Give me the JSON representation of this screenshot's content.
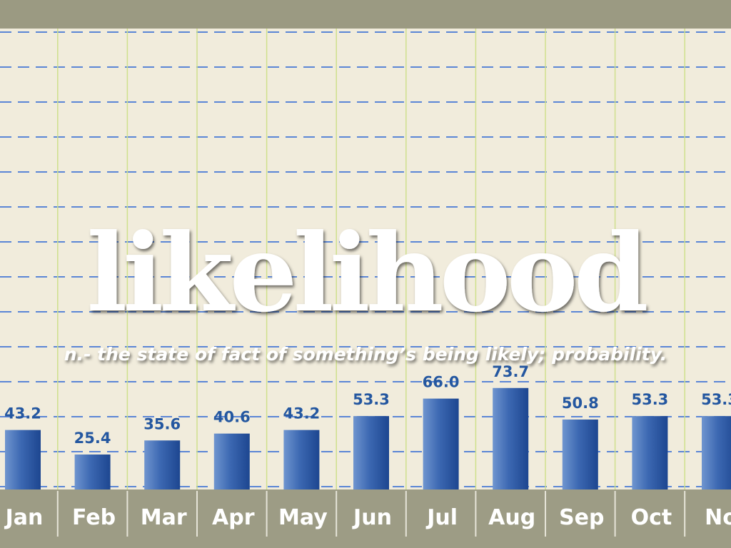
{
  "chart_data": {
    "type": "bar",
    "title": "likelihood",
    "subtitle": "n.- the state of fact of something’s being likely; probability.",
    "categories": [
      "Jan",
      "Feb",
      "Mar",
      "Apr",
      "May",
      "Jun",
      "Jul",
      "Aug",
      "Sep",
      "Oct",
      "No"
    ],
    "values": [
      43.2,
      25.4,
      35.6,
      40.6,
      43.2,
      53.3,
      66.0,
      73.7,
      50.8,
      53.3,
      53.3
    ],
    "value_labels": [
      "43.2",
      "25.4",
      "35.6",
      "40.6",
      "43.2",
      "53.3",
      "66.0",
      "73.7",
      "50.8",
      "53.3",
      "53.3"
    ],
    "color": "#2f5ea8"
  }
}
